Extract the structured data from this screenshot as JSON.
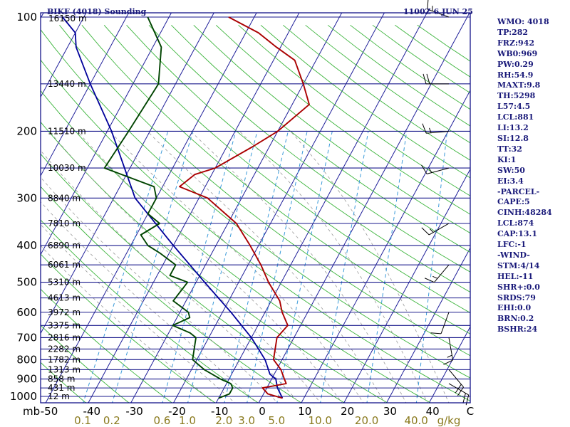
{
  "chart_data": {
    "type": "skew-t",
    "title": "BIKF (4018) Sounding",
    "time": "1100Z  6 JUN 25",
    "ylabel": "mb",
    "xlabel": "g/kg",
    "pressure_ticks": [
      "100",
      "200",
      "300",
      "400",
      "500",
      "600",
      "700",
      "800",
      "900",
      "1000"
    ],
    "temperature_ticks": [
      "-50",
      "-40",
      "-30",
      "-20",
      "-10",
      "0",
      "10",
      "20",
      "30",
      "40",
      "C"
    ],
    "mixing_ratio_ticks": [
      "0.1",
      "0.2",
      "0.6",
      "1.0",
      "2.0",
      "3.0",
      "5.0",
      "10.0",
      "20.0",
      "40.0"
    ],
    "height_levels": [
      {
        "p": 100,
        "label": "16150 m"
      },
      {
        "p": 150,
        "label": "13440 m"
      },
      {
        "p": 200,
        "label": "11510 m"
      },
      {
        "p": 250,
        "label": "10030 m"
      },
      {
        "p": 300,
        "label": "8840 m"
      },
      {
        "p": 350,
        "label": "7810 m"
      },
      {
        "p": 400,
        "label": "6890 m"
      },
      {
        "p": 450,
        "label": "6061 m"
      },
      {
        "p": 500,
        "label": "5310 m"
      },
      {
        "p": 550,
        "label": "4613 m"
      },
      {
        "p": 600,
        "label": "3972 m"
      },
      {
        "p": 650,
        "label": "3375 m"
      },
      {
        "p": 700,
        "label": "2816 m"
      },
      {
        "p": 750,
        "label": "2282 m"
      },
      {
        "p": 800,
        "label": "1782 m"
      },
      {
        "p": 850,
        "label": "1313 m"
      },
      {
        "p": 900,
        "label": "858 m"
      },
      {
        "p": 950,
        "label": "431 m"
      },
      {
        "p": 1000,
        "label": "12 m"
      }
    ],
    "temperature": {
      "name": "Temperature",
      "color": "#aa0000",
      "points": [
        [
          1011,
          5
        ],
        [
          985,
          1
        ],
        [
          950,
          -1
        ],
        [
          925,
          4
        ],
        [
          900,
          3
        ],
        [
          850,
          1
        ],
        [
          800,
          -2
        ],
        [
          700,
          -4
        ],
        [
          650,
          -3
        ],
        [
          600,
          -6
        ],
        [
          560,
          -8
        ],
        [
          500,
          -13
        ],
        [
          450,
          -17
        ],
        [
          400,
          -22
        ],
        [
          350,
          -28
        ],
        [
          300,
          -38
        ],
        [
          280,
          -46
        ],
        [
          260,
          -44
        ],
        [
          250,
          -40
        ],
        [
          220,
          -34
        ],
        [
          200,
          -30
        ],
        [
          170,
          -26
        ],
        [
          150,
          -30
        ],
        [
          130,
          -35
        ],
        [
          120,
          -41
        ],
        [
          110,
          -47
        ],
        [
          100,
          -56
        ]
      ]
    },
    "dewpoint": {
      "name": "Dewpoint",
      "color": "#004400",
      "points": [
        [
          1011,
          -10
        ],
        [
          985,
          -8
        ],
        [
          950,
          -8
        ],
        [
          925,
          -9
        ],
        [
          900,
          -12
        ],
        [
          850,
          -17
        ],
        [
          800,
          -21
        ],
        [
          700,
          -23
        ],
        [
          680,
          -25
        ],
        [
          650,
          -30
        ],
        [
          620,
          -27
        ],
        [
          600,
          -28
        ],
        [
          560,
          -33
        ],
        [
          500,
          -32
        ],
        [
          480,
          -37
        ],
        [
          450,
          -37
        ],
        [
          420,
          -42
        ],
        [
          400,
          -46
        ],
        [
          375,
          -49
        ],
        [
          350,
          -46
        ],
        [
          330,
          -50
        ],
        [
          300,
          -50
        ],
        [
          280,
          -52
        ],
        [
          250,
          -66
        ],
        [
          200,
          -65
        ],
        [
          150,
          -64
        ],
        [
          120,
          -68
        ],
        [
          100,
          -75
        ]
      ]
    },
    "parcel": {
      "name": "Parcel",
      "color": "#00009a",
      "points": [
        [
          1011,
          5
        ],
        [
          950,
          2.5
        ],
        [
          900,
          1
        ],
        [
          874,
          -1
        ],
        [
          800,
          -4
        ],
        [
          700,
          -10
        ],
        [
          600,
          -18
        ],
        [
          500,
          -28
        ],
        [
          400,
          -40
        ],
        [
          300,
          -55
        ],
        [
          200,
          -69
        ],
        [
          150,
          -80
        ],
        [
          120,
          -88
        ],
        [
          110,
          -90
        ],
        [
          100,
          -95
        ]
      ]
    },
    "wind_barbs": [
      {
        "p": 100,
        "dir": 290,
        "kts": 15
      },
      {
        "p": 150,
        "dir": 270,
        "kts": 20
      },
      {
        "p": 200,
        "dir": 265,
        "kts": 15
      },
      {
        "p": 250,
        "dir": 255,
        "kts": 15
      },
      {
        "p": 350,
        "dir": 240,
        "kts": 15
      },
      {
        "p": 450,
        "dir": 220,
        "kts": 15
      },
      {
        "p": 600,
        "dir": 200,
        "kts": 10
      },
      {
        "p": 700,
        "dir": 170,
        "kts": 15
      },
      {
        "p": 850,
        "dir": 140,
        "kts": 20
      },
      {
        "p": 925,
        "dir": 120,
        "kts": 20
      }
    ],
    "stats": [
      "WMO: 4018",
      "TP:282",
      "FRZ:942",
      "WB0:969",
      "PW:0.29",
      "RH:54.9",
      "MAXT:9.8",
      "TH:5298",
      "L57:4.5",
      "LCL:881",
      "LI:13.2",
      "SI:12.8",
      "TT:32",
      "KI:1",
      "SW:50",
      "EI:3.4",
      "-PARCEL-",
      "CAPE:5",
      "CINH:48284",
      "LCL:874",
      "CAP:13.1",
      "LFC:-1",
      "-WIND-",
      "STM:4/14",
      "HEL:-11",
      "SHR+:0.0",
      "SRDS:79",
      "EHI:0.0",
      "BRN:0.2",
      "BSHR:24"
    ],
    "colors": {
      "frame": "#000080",
      "isobar": "#1a1a8c",
      "isotherm": "#1e1e99",
      "dry_adiabat": "#3cb43c",
      "moist_adiabat": "#999999",
      "mixing_ratio": "#3a9ad9",
      "labels_text": "#1a1a7a",
      "mix_label": "#8a7a1e"
    }
  }
}
